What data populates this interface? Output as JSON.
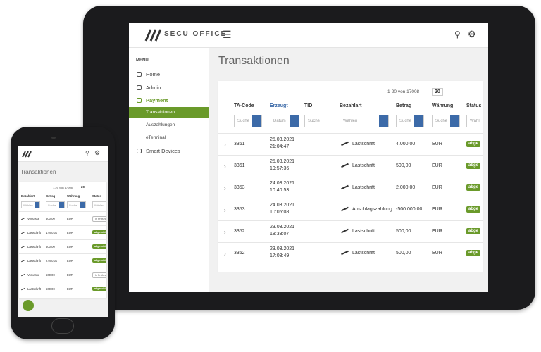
{
  "tablet": {
    "header": {
      "logo": "SECU OFFICE"
    },
    "menu": {
      "heading": "MENU",
      "items": [
        "Home",
        "Admin",
        "Payment",
        "Transaktionen",
        "Auszahlungen",
        "eTerminal",
        "Smart Devices"
      ]
    },
    "title": "Transaktionen",
    "pagination": {
      "range": "1-20 von 17008",
      "page_size": "20"
    },
    "columns": [
      "TA-Code",
      "Erzeugt",
      "TID",
      "Bezahlart",
      "Betrag",
      "Währung",
      "Status"
    ],
    "filters": [
      "Suche",
      "Datum",
      "Suche",
      "Wählen",
      "Suche",
      "Suche",
      "Wähl"
    ],
    "rows": [
      [
        "3361",
        "25.03.2021",
        "21:04:47",
        "Lastschrift",
        "4.000,00",
        "EUR",
        "abge"
      ],
      [
        "3361",
        "25.03.2021",
        "19:57:36",
        "Lastschrift",
        "500,00",
        "EUR",
        "abge"
      ],
      [
        "3353",
        "24.03.2021",
        "10:40:53",
        "Lastschrift",
        "2.000,00",
        "EUR",
        "abge"
      ],
      [
        "3353",
        "24.03.2021",
        "10:05:08",
        "Abschlagszahlung",
        "-500.000,00",
        "EUR",
        "abge"
      ],
      [
        "3352",
        "23.03.2021",
        "18:33:07",
        "Lastschrift",
        "500,00",
        "EUR",
        "abge"
      ],
      [
        "3352",
        "23.03.2021",
        "17:03:49",
        "Lastschrift",
        "500,00",
        "EUR",
        "abge"
      ]
    ]
  },
  "phone": {
    "title": "Transaktionen",
    "pagination": {
      "range": "1-20 von 17008",
      "page_size": "20"
    },
    "columns": [
      "Bezahlart",
      "Betrag",
      "Währung",
      "Status"
    ],
    "filters": [
      "Wählen",
      "Suche",
      "Suche",
      "Wählen"
    ],
    "rows": [
      [
        "Vorkasse",
        "500,00",
        "EUR",
        "In Prüfung"
      ],
      [
        "Lastschrift",
        "1.000,00",
        "EUR",
        "abgeschlossen"
      ],
      [
        "Lastschrift",
        "500,00",
        "EUR",
        "abgeschlossen"
      ],
      [
        "Lastschrift",
        "2.000,00",
        "EUR",
        "abgeschlossen"
      ],
      [
        "Vorkasse",
        "500,00",
        "EUR",
        "In Prüfung"
      ],
      [
        "Lastschrift",
        "500,00",
        "EUR",
        "abgeschlossen"
      ]
    ]
  }
}
